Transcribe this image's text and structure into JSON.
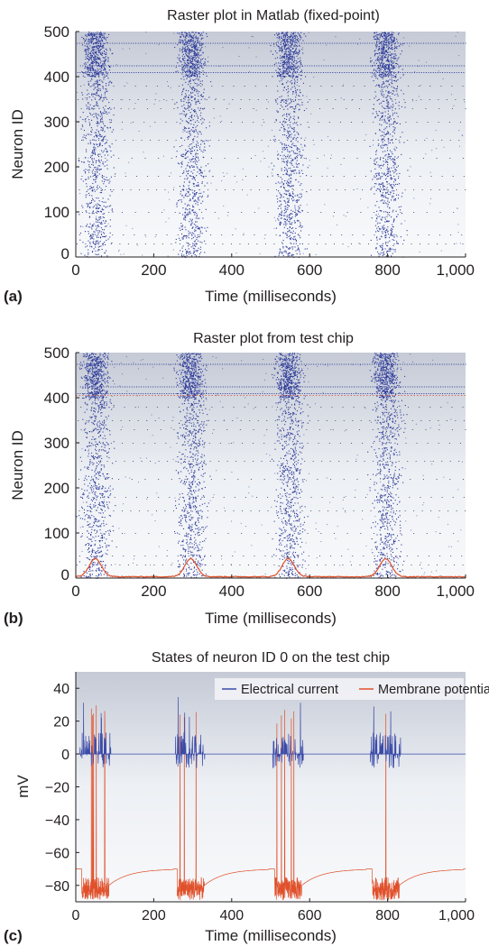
{
  "chart_data": [
    {
      "panel": "(a)",
      "type": "scatter",
      "title": "Raster plot in Matlab (fixed-point)",
      "xlabel": "Time (milliseconds)",
      "ylabel": "Neuron ID",
      "xlim": [
        0,
        1000
      ],
      "ylim": [
        0,
        500
      ],
      "xticks": [
        "0",
        "200",
        "400",
        "600",
        "800",
        "1,000"
      ],
      "yticks": [
        "0",
        "100",
        "200",
        "300",
        "400",
        "500"
      ],
      "grid": false,
      "burst_centers_ms": [
        50,
        295,
        545,
        795
      ],
      "burst_width_ms": 55,
      "dense_band_ids": [
        400,
        500
      ],
      "regular_rows_ids": [
        30,
        50,
        100,
        150,
        180,
        220,
        260,
        300,
        330,
        350,
        380,
        410,
        425,
        475
      ],
      "series": [
        {
          "name": "",
          "color": "#2f3c9a"
        }
      ]
    },
    {
      "panel": "(b)",
      "type": "scatter",
      "title": "Raster plot from test chip",
      "xlabel": "Time (milliseconds)",
      "ylabel": "Neuron ID",
      "xlim": [
        0,
        1000
      ],
      "ylim": [
        0,
        500
      ],
      "xticks": [
        "0",
        "200",
        "400",
        "600",
        "800",
        "1,000"
      ],
      "yticks": [
        "0",
        "100",
        "200",
        "300",
        "400",
        "500"
      ],
      "grid": false,
      "burst_centers_ms": [
        50,
        295,
        545,
        795
      ],
      "burst_width_ms": 55,
      "dense_band_ids": [
        400,
        500
      ],
      "regular_rows_ids": [
        30,
        50,
        100,
        150,
        180,
        220,
        260,
        300,
        330,
        350,
        380,
        410,
        425,
        475
      ],
      "overlay_peak_id": 40,
      "overlay_line_id": 405,
      "series": [
        {
          "name": "",
          "color": "#2f3c9a"
        },
        {
          "name": "",
          "color": "#e0502a"
        }
      ]
    },
    {
      "panel": "(c)",
      "type": "line",
      "title": "States of neuron ID 0 on the test chip",
      "xlabel": "Time (milliseconds)",
      "ylabel": "mV",
      "xlim": [
        0,
        1000
      ],
      "ylim": [
        -90,
        50
      ],
      "xticks": [
        "0",
        "200",
        "400",
        "600",
        "800",
        "1,000"
      ],
      "yticks": [
        "40",
        "20",
        "0",
        "−20",
        "−40",
        "−60",
        "−80"
      ],
      "ytick_values": [
        40,
        20,
        0,
        -20,
        -40,
        -60,
        -80
      ],
      "legend_placement": "top-right",
      "grid": false,
      "burst_centers_ms": [
        50,
        295,
        545,
        795
      ],
      "resting_mV": -70,
      "series": [
        {
          "name": "Electrical current",
          "color": "#3a4aa8",
          "peak_mV": 35
        },
        {
          "name": "Membrane potential",
          "color": "#e0502a",
          "peak_mV": 30,
          "trough_mV": -90
        }
      ]
    }
  ]
}
